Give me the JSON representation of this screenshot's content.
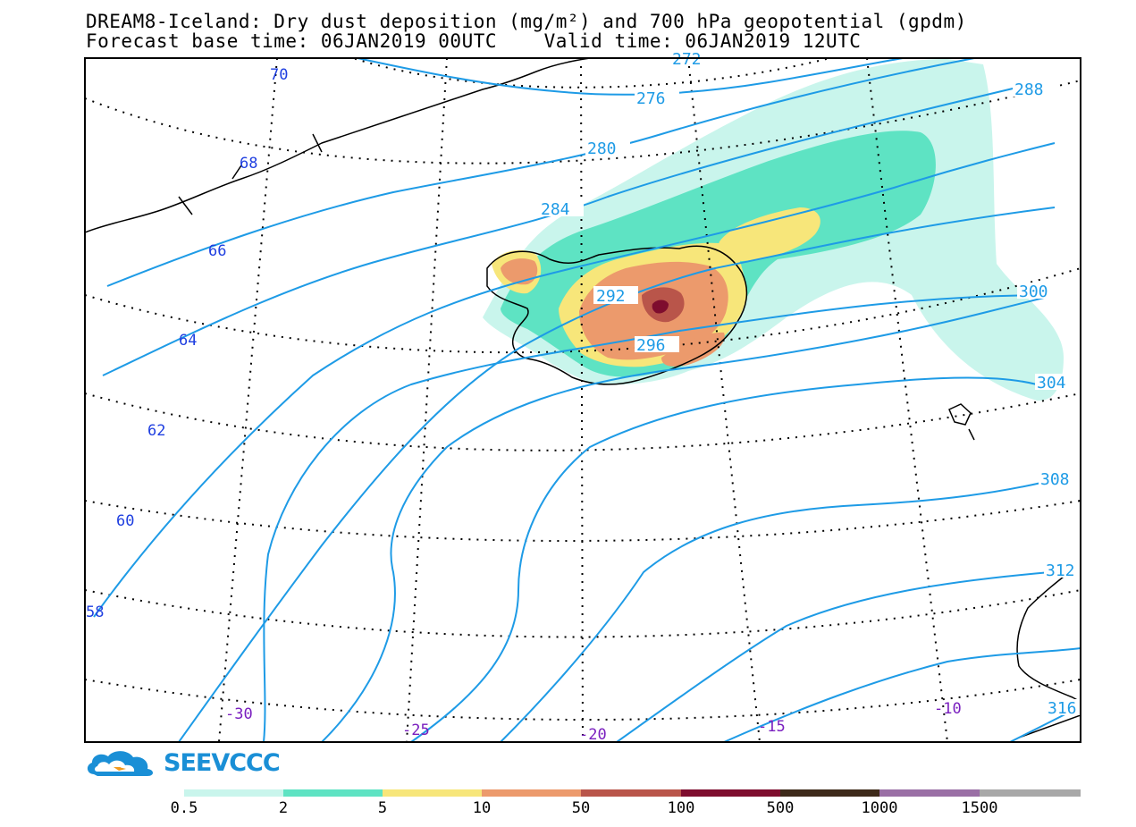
{
  "header": {
    "line1": "DREAM8-Iceland: Dry dust deposition (mg/m²) and 700 hPa geopotential (gpdm)",
    "line2": "Forecast base time: 06JAN2019 00UTC    Valid time: 06JAN2019 12UTC"
  },
  "map": {
    "latitude_labels": [
      "70",
      "68",
      "66",
      "64",
      "62",
      "60",
      "58"
    ],
    "longitude_labels": [
      "-30",
      "-25",
      "-20",
      "-15",
      "-10"
    ],
    "contour_labels": [
      "272",
      "276",
      "280",
      "284",
      "288",
      "292",
      "296",
      "300",
      "304",
      "308",
      "312",
      "316"
    ],
    "colors": {
      "contour": "#1e9be6",
      "lat_label": "#1f3fe0",
      "lon_label": "#7a1fbf"
    }
  },
  "legend": {
    "thresholds": [
      "0.5",
      "2",
      "5",
      "10",
      "50",
      "100",
      "500",
      "1000",
      "1500"
    ],
    "colors": [
      "#c9f5ec",
      "#5ee3c3",
      "#f7e67a",
      "#ec9a6c",
      "#b9554a",
      "#7e0d2e",
      "#3e2a1a",
      "#9a6fa5",
      "#a8a8a8"
    ]
  },
  "logo": {
    "text": "SEEVCCC",
    "icon": "cloud-logo-icon"
  }
}
